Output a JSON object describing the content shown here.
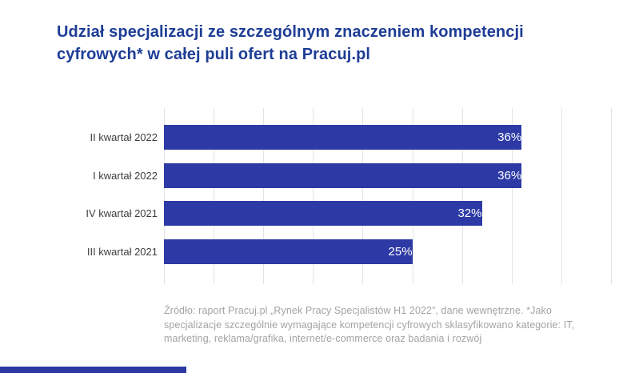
{
  "title": {
    "full": "Udział specjalizacji ze szczególnym znaczeniem kompetencji cyfrowych* w całej puli ofert na Pracuj.pl",
    "lines": [
      "Udział specjalizacji ze szczególnym znaczeniem kompetencji",
      "cyfrowych* w całej puli ofert na Pracuj.pl"
    ],
    "color": "#1e3d96"
  },
  "chart_data": {
    "type": "bar",
    "orientation": "horizontal",
    "title": "Udział specjalizacji ze szczególnym znaczeniem kompetencji cyfrowych* w całej puli ofert na Pracuj.pl",
    "categories": [
      "II kwartał 2022",
      "I kwartał 2022",
      "IV kwartał 2021",
      "III kwartał 2021"
    ],
    "values": [
      36,
      36,
      32,
      25
    ],
    "value_labels": [
      "36%",
      "36%",
      "32%",
      "25%"
    ],
    "xlabel": "",
    "ylabel": "",
    "xlim": [
      0,
      45
    ],
    "gridline_step": 5,
    "grid": true,
    "legend": "none",
    "bar_color": "#2d3aa5",
    "value_label_color": "#ffffff",
    "gridline_color": "#e3e3e6"
  },
  "footnote": {
    "full": "Źródło: raport Pracuj.pl „Rynek Pracy Specjalistów H1 2022”, dane wewnętrzne. *Jako specjalizacje szczególnie wymagające kompetencji cyfrowych sklasyfikowano kategorie: IT, marketing, reklama/grafika, internet/e-commerce oraz badania i rozwój",
    "lines": [
      "Źródło: raport Pracuj.pl „Rynek Pracy Specjalistów H1 2022”, dane wewnętrzne. *Jako",
      "specjalizacje szczególnie wymagające kompetencji cyfrowych sklasyfikowano kategorie: IT,",
      "marketing, reklama/grafika, internet/e-commerce oraz badania i rozwój"
    ],
    "color": "#a3a3a3"
  },
  "footer_bar": {
    "color": "#2d3aa5"
  }
}
